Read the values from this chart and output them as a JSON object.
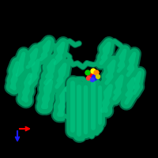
{
  "bg_color": "#000000",
  "protein_color": "#00a86b",
  "protein_color_dark": "#006644",
  "protein_color_light": "#00cc88",
  "protein_color_mid": "#009960",
  "axis_x_color": "#ff0000",
  "axis_y_color": "#1a1aff",
  "figsize": [
    2.0,
    2.0
  ],
  "dpi": 100,
  "helix_lw": 7,
  "loop_lw": 3
}
